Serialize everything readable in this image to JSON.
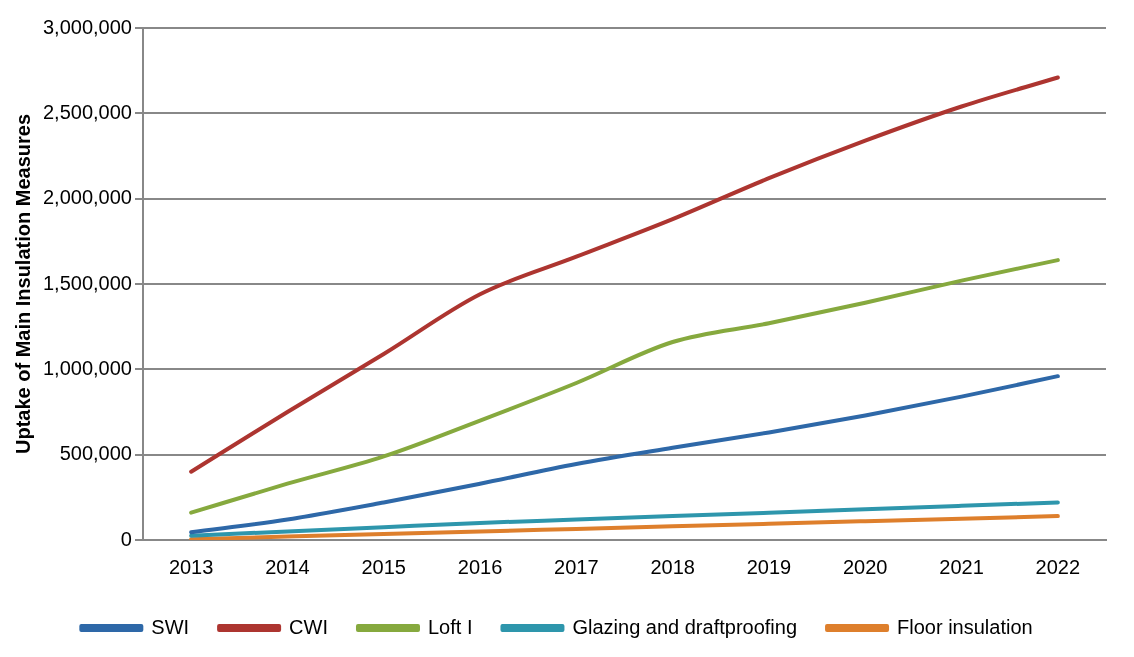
{
  "chart_data": {
    "type": "line",
    "ylabel": "Uptake of Main Insulation Measures",
    "categories": [
      "2013",
      "2014",
      "2015",
      "2016",
      "2017",
      "2018",
      "2019",
      "2020",
      "2021",
      "2022"
    ],
    "series": [
      {
        "name": "SWI",
        "color": "#2e68a8",
        "values": [
          45000,
          120000,
          220000,
          330000,
          445000,
          540000,
          630000,
          730000,
          840000,
          960000
        ]
      },
      {
        "name": "CWI",
        "color": "#ad3530",
        "values": [
          400000,
          750000,
          1090000,
          1440000,
          1660000,
          1880000,
          2120000,
          2340000,
          2540000,
          2710000
        ]
      },
      {
        "name": "Loft I",
        "color": "#86a93e",
        "values": [
          160000,
          330000,
          490000,
          700000,
          920000,
          1160000,
          1270000,
          1390000,
          1520000,
          1640000
        ]
      },
      {
        "name": "Glazing and draftproofing",
        "color": "#2e96ac",
        "values": [
          25000,
          50000,
          75000,
          100000,
          120000,
          140000,
          160000,
          180000,
          200000,
          220000
        ]
      },
      {
        "name": "Floor insulation",
        "color": "#de7f2c",
        "values": [
          5000,
          20000,
          35000,
          50000,
          65000,
          80000,
          95000,
          110000,
          125000,
          140000
        ]
      }
    ],
    "ylim": [
      0,
      3000000
    ],
    "yticks": [
      0,
      {
        "value": 500000,
        "label": "500,000"
      },
      {
        "value": 1000000,
        "label": "1,000,000"
      },
      {
        "value": 1500000,
        "label": "1,500,000"
      },
      {
        "value": 2000000,
        "label": "2,000,000"
      },
      {
        "value": 2500000,
        "label": "2,500,000"
      },
      {
        "value": 3000000,
        "label": "3,000,000"
      }
    ],
    "grid": "y",
    "legend": "bottom",
    "marker": "none",
    "line_style": "solid"
  }
}
